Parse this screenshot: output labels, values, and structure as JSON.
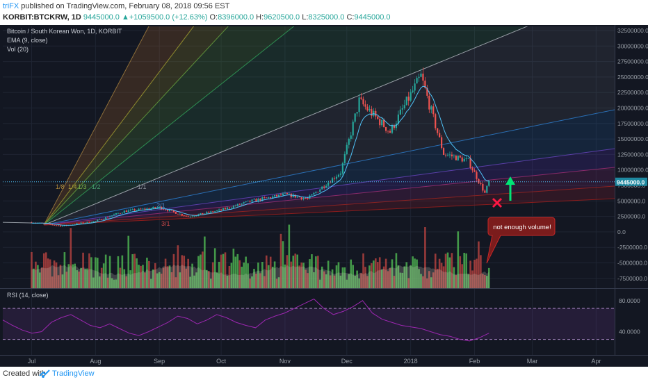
{
  "header": {
    "author": "triFX",
    "published": " published on TradingView.com, February 08, 2018 09:56 EST",
    "symbol": "KORBIT:BTCKRW, 1D",
    "last": "9445000.0",
    "change_arrow": "▲",
    "change": "+1059500.0 (+12.63%)",
    "o_label": "O:",
    "o": "8396000.0",
    "h_label": "H:",
    "h": "9620500.0",
    "l_label": "L:",
    "l": "8325000.0",
    "c_label": "C:",
    "c": "9445000.0"
  },
  "legend": {
    "title": "Bitcoin / South Korean Won, 1D, KORBIT",
    "ema": "EMA (9, close)",
    "vol": "Vol (20)",
    "rsi": "RSI (14, close)"
  },
  "fan_labels": [
    "1/8",
    "1/4",
    "1/3",
    "1/2",
    "1/1",
    "2/1",
    "3/1"
  ],
  "annotation": {
    "text": "not enough volume!"
  },
  "footer": {
    "created": "Created with",
    "brand": "TradingView"
  },
  "colors": {
    "background": "#131722",
    "up": "#26a69a",
    "down": "#ef5350",
    "vol_up": "#4caf50",
    "vol_down": "#b0413e",
    "rsi": "#9c27b0",
    "arrow": "#00e676",
    "cross": "#ff1744",
    "callout": "#7b1c1c"
  },
  "chart_data": [
    {
      "type": "candlestick",
      "title": "Bitcoin / South Korean Won, 1D, KORBIT",
      "y_ticks": [
        "32500000.0",
        "30000000.0",
        "27500000.0",
        "25000000.0",
        "22500000.0",
        "20000000.0",
        "17500000.0",
        "15000000.0",
        "12500000.0",
        "10000000.0",
        "7500000.0",
        "5000000.0",
        "2500000.0",
        "0.0",
        "-2500000.0",
        "-5000000.0",
        "-7500000.0"
      ],
      "x_ticks": [
        "Jul",
        "Aug",
        "Sep",
        "Oct",
        "Nov",
        "Dec",
        "2018",
        "Feb",
        "Mar",
        "Apr"
      ],
      "last_price": "9445000.0",
      "series_anchor_points": [
        {
          "date": "2017-07-01",
          "price": 2900000
        },
        {
          "date": "2017-07-16",
          "price": 2300000
        },
        {
          "date": "2017-08-01",
          "price": 3100000
        },
        {
          "date": "2017-08-15",
          "price": 4700000
        },
        {
          "date": "2017-09-01",
          "price": 5300000
        },
        {
          "date": "2017-09-15",
          "price": 3800000
        },
        {
          "date": "2017-10-01",
          "price": 4900000
        },
        {
          "date": "2017-10-15",
          "price": 6300000
        },
        {
          "date": "2017-11-01",
          "price": 7400000
        },
        {
          "date": "2017-11-12",
          "price": 6700000
        },
        {
          "date": "2017-11-28",
          "price": 11000000
        },
        {
          "date": "2017-12-07",
          "price": 22500000
        },
        {
          "date": "2017-12-22",
          "price": 17500000
        },
        {
          "date": "2018-01-06",
          "price": 26500000
        },
        {
          "date": "2018-01-17",
          "price": 14000000
        },
        {
          "date": "2018-01-29",
          "price": 12800000
        },
        {
          "date": "2018-02-06",
          "price": 7600000
        },
        {
          "date": "2018-02-08",
          "price": 9445000
        }
      ],
      "ema_period": 9,
      "legend": "top-left",
      "grid": true
    },
    {
      "type": "bar",
      "title": "Vol (20)",
      "note": "volume bars colored green/red by candle direction with shaded MA(20) area"
    },
    {
      "type": "line",
      "title": "RSI (14, close)",
      "y_ticks": [
        "80.0000",
        "40.0000"
      ],
      "bands": [
        30,
        70
      ],
      "values": [
        55,
        48,
        42,
        38,
        40,
        52,
        58,
        62,
        55,
        48,
        45,
        50,
        44,
        38,
        35,
        40,
        46,
        52,
        60,
        57,
        50,
        55,
        62,
        58,
        52,
        48,
        45,
        55,
        60,
        64,
        70,
        76,
        82,
        70,
        62,
        66,
        72,
        80,
        64,
        56,
        52,
        48,
        46,
        44,
        40,
        36,
        34,
        30,
        28,
        32,
        38
      ]
    }
  ]
}
